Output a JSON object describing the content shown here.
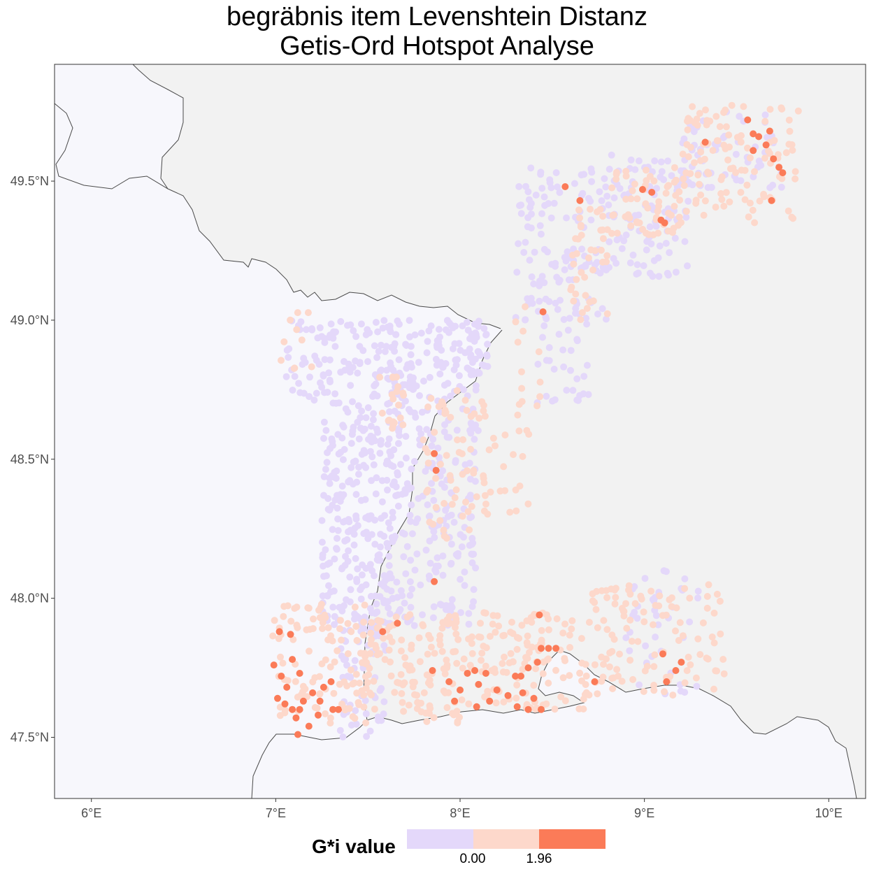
{
  "title": {
    "line1": "begräbnis item Levenshtein Distanz",
    "line2": "Getis-Ord Hotspot Analyse"
  },
  "axes": {
    "x_ticks": [
      "6°E",
      "7°E",
      "8°E",
      "9°E",
      "10°E"
    ],
    "y_ticks": [
      "49.5°N",
      "49.0°N",
      "48.5°N",
      "48.0°N",
      "47.5°N"
    ],
    "x_range": [
      5.8,
      10.2
    ],
    "y_range": [
      47.28,
      49.92
    ]
  },
  "colors": {
    "panel_background": "#f7f7fc",
    "study_region_fill": "#f2f2f2",
    "border_line": "#4a4a4a",
    "class_low": "#e4d8fa",
    "class_mid": "#fdd8cb",
    "class_high": "#fb7b58"
  },
  "legend": {
    "title": "G*i value",
    "breaks": [
      "0.00",
      "1.96"
    ],
    "classes": [
      "below 0.00",
      "0.00 to 1.96",
      "above 1.96"
    ]
  },
  "chart_data": {
    "type": "scatter",
    "x_unit": "longitude °E",
    "y_unit": "latitude °N",
    "hotspots_high": [
      [
        7.02,
        47.88
      ],
      [
        7.08,
        47.87
      ],
      [
        6.99,
        47.76
      ],
      [
        7.03,
        47.72
      ],
      [
        7.06,
        47.68
      ],
      [
        7.01,
        47.64
      ],
      [
        7.05,
        47.62
      ],
      [
        7.09,
        47.6
      ],
      [
        7.13,
        47.6
      ],
      [
        7.11,
        47.57
      ],
      [
        7.15,
        47.63
      ],
      [
        7.2,
        47.66
      ],
      [
        7.24,
        47.63
      ],
      [
        7.26,
        47.68
      ],
      [
        7.3,
        47.7
      ],
      [
        7.23,
        47.58
      ],
      [
        7.18,
        47.54
      ],
      [
        7.12,
        47.51
      ],
      [
        7.31,
        47.6
      ],
      [
        7.34,
        47.6
      ],
      [
        7.09,
        47.78
      ],
      [
        7.13,
        47.73
      ],
      [
        7.66,
        47.91
      ],
      [
        7.58,
        47.88
      ],
      [
        7.85,
        47.74
      ],
      [
        7.94,
        47.7
      ],
      [
        7.97,
        47.63
      ],
      [
        8.0,
        47.67
      ],
      [
        8.04,
        47.73
      ],
      [
        8.08,
        47.74
      ],
      [
        8.1,
        47.69
      ],
      [
        8.14,
        47.73
      ],
      [
        8.09,
        47.61
      ],
      [
        8.16,
        47.63
      ],
      [
        8.2,
        47.67
      ],
      [
        8.26,
        47.65
      ],
      [
        8.3,
        47.72
      ],
      [
        8.34,
        47.66
      ],
      [
        8.37,
        47.6
      ],
      [
        8.4,
        47.64
      ],
      [
        8.44,
        47.6
      ],
      [
        8.31,
        47.61
      ],
      [
        8.33,
        47.72
      ],
      [
        8.37,
        47.75
      ],
      [
        8.42,
        47.77
      ],
      [
        8.44,
        47.82
      ],
      [
        8.48,
        47.82
      ],
      [
        8.52,
        47.82
      ],
      [
        8.43,
        47.94
      ],
      [
        8.73,
        47.7
      ],
      [
        9.1,
        47.8
      ],
      [
        9.17,
        47.74
      ],
      [
        9.2,
        47.77
      ],
      [
        9.12,
        47.7
      ],
      [
        7.86,
        48.06
      ],
      [
        7.86,
        48.52
      ],
      [
        7.87,
        48.46
      ],
      [
        8.45,
        49.03
      ],
      [
        8.57,
        49.48
      ],
      [
        8.65,
        49.43
      ],
      [
        8.99,
        49.47
      ],
      [
        9.04,
        49.46
      ],
      [
        9.09,
        49.36
      ],
      [
        9.11,
        49.35
      ],
      [
        9.33,
        49.64
      ],
      [
        9.56,
        49.72
      ],
      [
        9.59,
        49.67
      ],
      [
        9.59,
        49.61
      ],
      [
        9.62,
        49.66
      ],
      [
        9.66,
        49.63
      ],
      [
        9.7,
        49.58
      ],
      [
        9.73,
        49.55
      ],
      [
        9.75,
        49.53
      ],
      [
        9.69,
        49.43
      ],
      [
        9.68,
        49.68
      ]
    ],
    "hotspots_mid_regions": [
      {
        "lon_center": 7.65,
        "lat_center": 47.66,
        "lon_spread": 0.55,
        "lat_spread": 0.2
      },
      {
        "lon_center": 8.3,
        "lat_center": 47.75,
        "lon_spread": 0.6,
        "lat_spread": 0.2
      },
      {
        "lon_center": 9.05,
        "lat_center": 47.8,
        "lon_spread": 0.4,
        "lat_spread": 0.18
      },
      {
        "lon_center": 7.92,
        "lat_center": 48.5,
        "lon_spread": 0.22,
        "lat_spread": 0.25
      },
      {
        "lon_center": 9.4,
        "lat_center": 49.55,
        "lon_spread": 0.4,
        "lat_spread": 0.2
      }
    ],
    "coldspot_regions": [
      {
        "lon_center": 7.45,
        "lat_center": 48.45,
        "lon_spread": 0.25,
        "lat_spread": 0.5
      },
      {
        "lon_center": 7.85,
        "lat_center": 48.25,
        "lon_spread": 0.25,
        "lat_spread": 0.45
      },
      {
        "lon_center": 8.5,
        "lat_center": 49.2,
        "lon_spread": 0.35,
        "lat_spread": 0.2
      },
      {
        "lon_center": 9.0,
        "lat_center": 49.45,
        "lon_spread": 0.4,
        "lat_spread": 0.15
      }
    ]
  }
}
